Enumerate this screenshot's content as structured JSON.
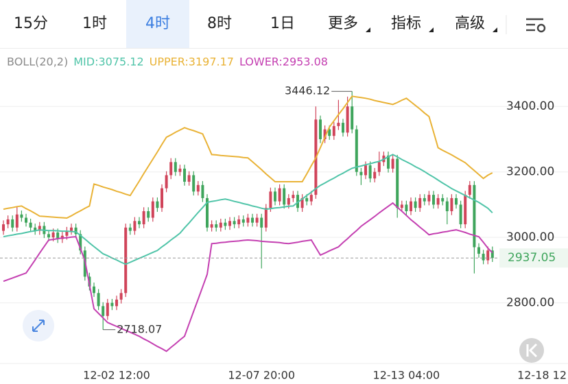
{
  "tabs": [
    {
      "label": "15分"
    },
    {
      "label": "1时"
    },
    {
      "label": "4时",
      "active": true
    },
    {
      "label": "8时"
    },
    {
      "label": "1日"
    },
    {
      "label": "更多",
      "dropdown": true
    },
    {
      "label": "指标",
      "dropdown": true
    },
    {
      "label": "高级",
      "dropdown": true
    }
  ],
  "chart_data": {
    "type": "candlestick",
    "indicator": "BOLL(20,2)",
    "up_color": "#d0445a",
    "down_color": "#3fa55c",
    "categories": [
      null,
      null,
      null,
      null,
      null,
      null,
      null,
      null,
      null,
      null,
      null,
      null,
      null,
      null,
      null,
      null,
      null,
      null,
      null,
      null,
      null,
      null,
      null,
      null,
      null,
      "12-02 12:00",
      null,
      null,
      null,
      null,
      null,
      null,
      null,
      null,
      null,
      null,
      null,
      null,
      null,
      null,
      null,
      null,
      null,
      null,
      null,
      null,
      null,
      null,
      null,
      null,
      null,
      null,
      null,
      null,
      null,
      null,
      null,
      "12-07 20:00",
      null,
      null,
      null,
      null,
      null,
      null,
      null,
      null,
      null,
      null,
      null,
      null,
      null,
      null,
      null,
      null,
      null,
      null,
      null,
      null,
      null,
      null,
      null,
      null,
      null,
      null,
      null,
      null,
      null,
      null,
      null,
      "12-13 04:00",
      null,
      null,
      null,
      null,
      null,
      null,
      null,
      null,
      null,
      null,
      null,
      null,
      null,
      null,
      null,
      null,
      null,
      null,
      null,
      null,
      null,
      null,
      null,
      null,
      null,
      null,
      null,
      null,
      null,
      null,
      null,
      "12-18 12"
    ],
    "open": [
      3020,
      3040,
      3055,
      3030,
      3070,
      3060,
      3045,
      3030,
      3020,
      3035,
      3010,
      3000,
      3015,
      2995,
      3005,
      3020,
      3030,
      3010,
      2960,
      2880,
      2850,
      2830,
      2790,
      2760,
      2800,
      2790,
      2810,
      2830,
      3030,
      3020,
      3050,
      3040,
      3080,
      3060,
      3110,
      3090,
      3150,
      3190,
      3230,
      3200,
      3210,
      3170,
      3190,
      3140,
      3160,
      3120,
      3030,
      3040,
      3030,
      3045,
      3035,
      3050,
      3040,
      3055,
      3045,
      3060,
      3045,
      3060,
      3030,
      3090,
      3140,
      3110,
      3150,
      3100,
      3120,
      3130,
      3090,
      3120,
      3110,
      3130,
      3360,
      3300,
      3330,
      3310,
      3340,
      3350,
      3320,
      3400,
      3330,
      3200,
      3190,
      3220,
      3180,
      3200,
      3230,
      3250,
      3210,
      3240,
      3090,
      3100,
      3080,
      3110,
      3090,
      3120,
      3110,
      3130,
      3100,
      3120,
      3110,
      3080,
      3120,
      3100,
      3040,
      3130,
      3160,
      2970,
      2950,
      2930,
      2960,
      null,
      null,
      null,
      null,
      null,
      null,
      null,
      null,
      null,
      null,
      null,
      null,
      null
    ],
    "high": [
      3052,
      3067,
      3067,
      3095,
      3082,
      3072,
      3057,
      3042,
      3047,
      3047,
      3022,
      3027,
      3027,
      3017,
      3032,
      3042,
      3042,
      3022,
      2972,
      2892,
      2862,
      2842,
      2802,
      2812,
      2812,
      2822,
      2842,
      3042,
      3042,
      3062,
      3062,
      3092,
      3092,
      3122,
      3122,
      3162,
      3202,
      3242,
      3242,
      3222,
      3222,
      3202,
      3202,
      3172,
      3172,
      3132,
      3052,
      3052,
      3057,
      3057,
      3062,
      3062,
      3067,
      3067,
      3072,
      3072,
      3072,
      3072,
      3102,
      3152,
      3152,
      3162,
      3162,
      3132,
      3142,
      3142,
      3132,
      3132,
      3142,
      3400,
      3372,
      3342,
      3342,
      3352,
      3420,
      3362,
      3430,
      3446.12,
      3342,
      3212,
      3232,
      3232,
      3212,
      3262,
      3262,
      3262,
      3252,
      3252,
      3112,
      3112,
      3122,
      3122,
      3132,
      3132,
      3142,
      3142,
      3132,
      3132,
      3122,
      3132,
      3132,
      3112,
      3142,
      3172,
      3172,
      2982,
      2962,
      2972,
      2972,
      null,
      null,
      null,
      null,
      null,
      null,
      null,
      null,
      null,
      null,
      null,
      null,
      null
    ],
    "low": [
      3008,
      3028,
      3018,
      3018,
      3048,
      3033,
      3018,
      3008,
      3008,
      2998,
      2988,
      2988,
      2983,
      2983,
      2993,
      3008,
      2998,
      2948,
      2868,
      2838,
      2818,
      2778,
      2718.07,
      2748,
      2778,
      2778,
      2798,
      2818,
      3008,
      3008,
      3028,
      3028,
      3048,
      3048,
      3078,
      3078,
      3138,
      3178,
      3188,
      3188,
      3158,
      3158,
      3128,
      3128,
      3108,
      3018,
      3018,
      3018,
      3018,
      3023,
      3023,
      3028,
      3028,
      3033,
      3033,
      3033,
      3033,
      2905,
      3018,
      3078,
      3098,
      3098,
      3088,
      3088,
      3108,
      3078,
      3078,
      3098,
      3098,
      3118,
      3288,
      3288,
      3298,
      3298,
      3328,
      3308,
      3308,
      3318,
      3188,
      3160,
      3178,
      3168,
      3168,
      3188,
      3218,
      3198,
      3198,
      3060,
      3078,
      3068,
      3068,
      3078,
      3078,
      3098,
      3098,
      3088,
      3088,
      3098,
      3040,
      3068,
      3088,
      3028,
      3028,
      3118,
      2890,
      2938,
      2918,
      2918,
      2925,
      null,
      null,
      null,
      null,
      null,
      null,
      null,
      null,
      null,
      null,
      null,
      null,
      null
    ],
    "close": [
      3040,
      3055,
      3030,
      3070,
      3060,
      3045,
      3030,
      3020,
      3035,
      3010,
      3000,
      3015,
      2995,
      3005,
      3020,
      3030,
      3010,
      2960,
      2880,
      2850,
      2830,
      2790,
      2760,
      2800,
      2790,
      2810,
      2830,
      3030,
      3020,
      3050,
      3040,
      3080,
      3060,
      3110,
      3090,
      3150,
      3190,
      3230,
      3200,
      3210,
      3170,
      3190,
      3140,
      3160,
      3120,
      3030,
      3040,
      3030,
      3045,
      3035,
      3050,
      3040,
      3055,
      3045,
      3060,
      3045,
      3060,
      3030,
      3090,
      3140,
      3110,
      3150,
      3100,
      3120,
      3130,
      3090,
      3120,
      3110,
      3130,
      3360,
      3300,
      3330,
      3310,
      3340,
      3350,
      3320,
      3400,
      3330,
      3200,
      3190,
      3220,
      3180,
      3200,
      3230,
      3250,
      3210,
      3240,
      3090,
      3100,
      3080,
      3110,
      3090,
      3120,
      3110,
      3130,
      3100,
      3120,
      3110,
      3080,
      3120,
      3100,
      3040,
      3130,
      3160,
      2970,
      2950,
      2930,
      2960,
      2937.05,
      null,
      null,
      null,
      null,
      null,
      null,
      null,
      null,
      null,
      null,
      null,
      null,
      null
    ],
    "series": [
      {
        "name": "MID:3075.12",
        "color": "#4fc4a8",
        "values": [
          3002,
          3005,
          3007,
          3010,
          3012,
          3015,
          3018,
          3020,
          3023,
          3022,
          3021,
          3021,
          3020,
          3019,
          3019,
          3018,
          3017,
          3006,
          2995,
          2983,
          2972,
          2961,
          2950,
          2944,
          2937,
          2931,
          2924,
          2918,
          2924,
          2930,
          2936,
          2942,
          2948,
          2954,
          2960,
          2971,
          2981,
          2992,
          3002,
          3013,
          3029,
          3044,
          3060,
          3076,
          3091,
          3107,
          3110,
          3112,
          3115,
          3117,
          3114,
          3110,
          3107,
          3103,
          3100,
          3096,
          3093,
          3089,
          3086,
          3088,
          3090,
          3091,
          3093,
          3095,
          3096,
          3107,
          3117,
          3128,
          3138,
          3149,
          3159,
          3166,
          3174,
          3181,
          3189,
          3196,
          3204,
          3211,
          3215,
          3218,
          3222,
          3225,
          3229,
          3232,
          3239,
          3246,
          3253,
          3246,
          3238,
          3231,
          3224,
          3216,
          3209,
          3201,
          3192,
          3184,
          3175,
          3166,
          3158,
          3149,
          3142,
          3135,
          3128,
          3121,
          3114,
          3107,
          3098,
          3089,
          3075.12,
          null,
          null,
          null,
          null,
          null,
          null,
          null,
          null,
          null,
          null,
          null,
          null,
          null
        ]
      },
      {
        "name": "UPPER:3197.17",
        "color": "#e9b235",
        "values": [
          3086,
          3089,
          3091,
          3094,
          3096,
          3088,
          3081,
          3073,
          3065,
          3064,
          3063,
          3062,
          3061,
          3060,
          3059,
          3066,
          3074,
          3081,
          3089,
          3096,
          3163,
          3159,
          3154,
          3150,
          3146,
          3141,
          3137,
          3132,
          3128,
          3150,
          3172,
          3195,
          3217,
          3239,
          3261,
          3284,
          3306,
          3313,
          3321,
          3328,
          3335,
          3330,
          3326,
          3321,
          3316,
          3285,
          3253,
          3252,
          3250,
          3249,
          3248,
          3247,
          3246,
          3244,
          3243,
          3231,
          3219,
          3207,
          3194,
          3182,
          3170,
          3170,
          3170,
          3170,
          3170,
          3170,
          3170,
          3194,
          3219,
          3243,
          3274,
          3306,
          3337,
          3356,
          3375,
          3393,
          3412,
          3431,
          3429,
          3427,
          3425,
          3422,
          3418,
          3415,
          3412,
          3409,
          3406,
          3412,
          3419,
          3425,
          3414,
          3403,
          3392,
          3380,
          3369,
          3322,
          3274,
          3266,
          3259,
          3252,
          3244,
          3236,
          3228,
          3216,
          3204,
          3192,
          3180,
          3190,
          3197.17,
          null,
          null,
          null,
          null,
          null,
          null,
          null,
          null,
          null,
          null,
          null,
          null,
          null
        ]
      },
      {
        "name": "LOWER:2953.08",
        "color": "#c43fb1",
        "values": [
          2866,
          2871,
          2876,
          2881,
          2886,
          2891,
          2911,
          2931,
          2952,
          2972,
          2992,
          2994,
          2996,
          2998,
          2999,
          3001,
          3002,
          2966,
          2929,
          2856,
          2782,
          2768,
          2754,
          2740,
          2734,
          2728,
          2722,
          2716,
          2710,
          2704,
          2698,
          2690,
          2683,
          2675,
          2667,
          2660,
          2652,
          2664,
          2675,
          2687,
          2698,
          2736,
          2774,
          2811,
          2849,
          2887,
          2981,
          2982,
          2984,
          2985,
          2987,
          2988,
          2989,
          2991,
          2992,
          2991,
          2990,
          2988,
          2987,
          2986,
          2985,
          2984,
          2982,
          2981,
          2983,
          2985,
          2988,
          2990,
          2992,
          2969,
          2946,
          2952,
          2959,
          2965,
          2971,
          2984,
          2996,
          3009,
          3021,
          3034,
          3044,
          3054,
          3064,
          3075,
          3085,
          3095,
          3105,
          3092,
          3080,
          3067,
          3054,
          3043,
          3031,
          3020,
          3008,
          3011,
          3013,
          3016,
          3018,
          3021,
          3023,
          3019,
          3015,
          3010,
          3006,
          3002,
          2985,
          2967,
          2953.08,
          null,
          null,
          null,
          null,
          null,
          null,
          null,
          null,
          null,
          null,
          null,
          null,
          null
        ]
      }
    ],
    "ylim": [
      2615,
      3568
    ],
    "yticks": [
      {
        "value": 2800,
        "label": "2800.00"
      },
      {
        "value": 3000,
        "label": "3000.00"
      },
      {
        "value": 3200,
        "label": "3200.00"
      },
      {
        "value": 3400,
        "label": "3400.00"
      }
    ],
    "grid": true
  }
}
